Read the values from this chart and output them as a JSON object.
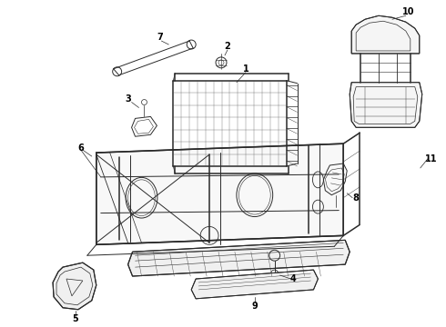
{
  "bg_color": "#ffffff",
  "line_color": "#2a2a2a",
  "label_color": "#000000",
  "lw": 0.7,
  "lw_thick": 1.1
}
